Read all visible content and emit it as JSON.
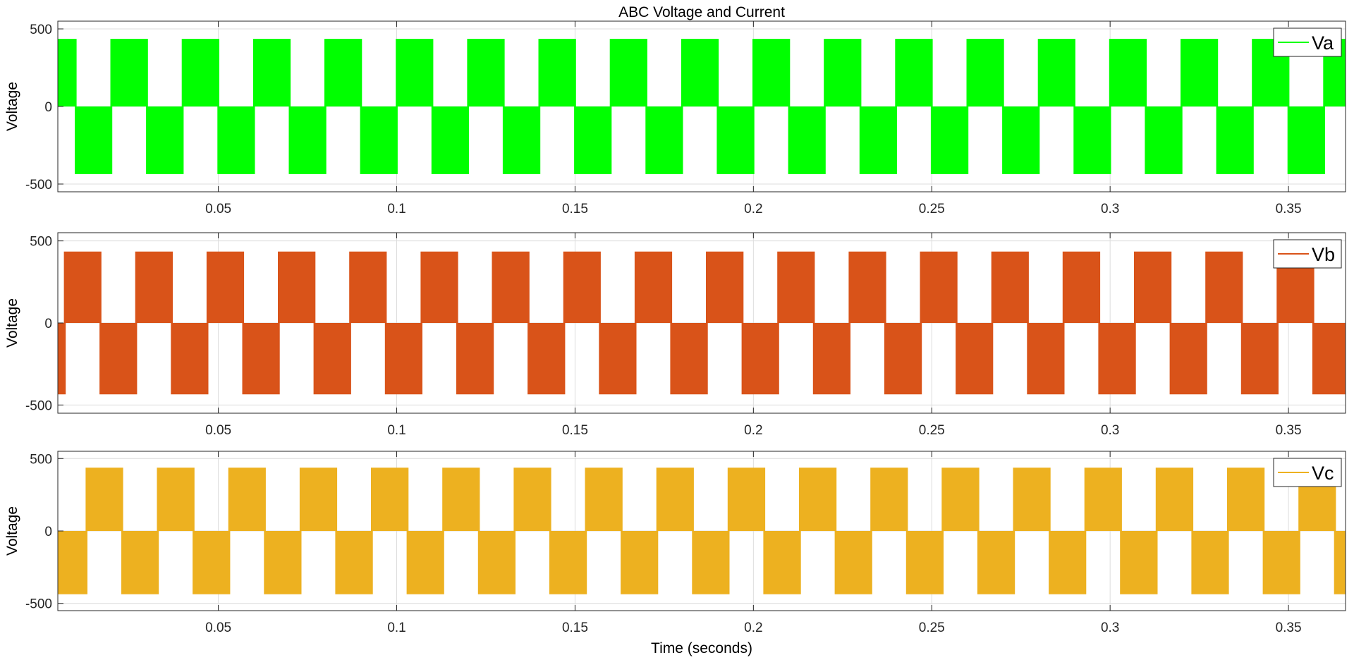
{
  "chart_data": {
    "title": "ABC Voltage and Current",
    "xlabel": "Time (seconds)",
    "xlim": [
      0.005,
      0.366
    ],
    "xticks": [
      0.05,
      0.1,
      0.15,
      0.2,
      0.25,
      0.3,
      0.35
    ],
    "xtick_labels": [
      "0.05",
      "0.1",
      "0.15",
      "0.2",
      "0.25",
      "0.3",
      "0.35"
    ],
    "grid": true,
    "legend_location": "top-right",
    "subplots": [
      {
        "type": "line",
        "ylabel": "Voltage",
        "ylim": [
          -550,
          550
        ],
        "yticks": [
          -500,
          0,
          500
        ],
        "ytick_labels": [
          "-500",
          "0",
          "500"
        ],
        "series": [
          {
            "name": "Va",
            "color": "#00FF00",
            "amplitude": 420,
            "phase_deg": 0,
            "fundamental_hz": 50,
            "switching_hz": 1000
          }
        ]
      },
      {
        "type": "line",
        "ylabel": "Voltage",
        "ylim": [
          -550,
          550
        ],
        "yticks": [
          -500,
          0,
          500
        ],
        "ytick_labels": [
          "-500",
          "0",
          "500"
        ],
        "series": [
          {
            "name": "Vb",
            "color": "#D95319",
            "amplitude": 420,
            "phase_deg": -120,
            "fundamental_hz": 50,
            "switching_hz": 1000
          }
        ]
      },
      {
        "type": "line",
        "ylabel": "Voltage",
        "ylim": [
          -550,
          550
        ],
        "yticks": [
          -500,
          0,
          500
        ],
        "ytick_labels": [
          "-500",
          "0",
          "500"
        ],
        "series": [
          {
            "name": "Vc",
            "color": "#EDB120",
            "amplitude": 420,
            "phase_deg": 120,
            "fundamental_hz": 50,
            "switching_hz": 1000
          }
        ]
      }
    ]
  }
}
